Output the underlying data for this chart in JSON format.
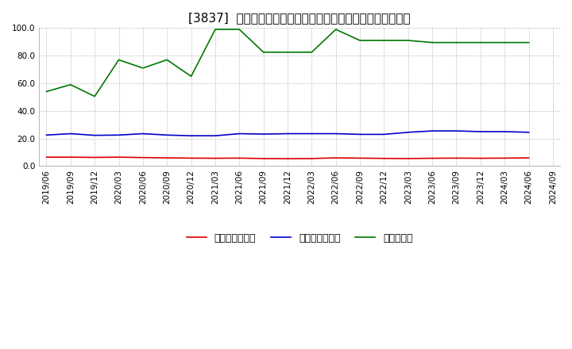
{
  "title": "[3837]  売上債権回転率、買入債務回転率、在庫回転率の推移",
  "x_labels": [
    "2019/06",
    "2019/09",
    "2019/12",
    "2020/03",
    "2020/06",
    "2020/09",
    "2020/12",
    "2021/03",
    "2021/06",
    "2021/09",
    "2021/12",
    "2022/03",
    "2022/06",
    "2022/09",
    "2022/12",
    "2023/03",
    "2023/06",
    "2023/09",
    "2023/12",
    "2024/03",
    "2024/06",
    "2024/09"
  ],
  "receivables_turnover": [
    6.5,
    6.5,
    6.3,
    6.5,
    6.2,
    6.0,
    5.8,
    5.7,
    5.8,
    5.5,
    5.4,
    5.5,
    6.0,
    5.8,
    5.6,
    5.5,
    5.7,
    5.8,
    5.7,
    5.8,
    6.0,
    null
  ],
  "payables_turnover": [
    22.5,
    23.5,
    22.3,
    22.5,
    23.5,
    22.5,
    22.0,
    22.0,
    23.5,
    23.2,
    23.5,
    23.5,
    23.5,
    23.0,
    23.0,
    24.5,
    25.5,
    25.5,
    25.0,
    25.0,
    24.5,
    null
  ],
  "inventory_turnover": [
    54.0,
    59.0,
    50.5,
    77.0,
    71.0,
    77.0,
    65.0,
    99.0,
    99.0,
    82.5,
    82.5,
    82.5,
    99.0,
    91.0,
    91.0,
    91.0,
    89.5,
    89.5,
    89.5,
    89.5,
    89.5,
    null
  ],
  "ylim": [
    0.0,
    100.0
  ],
  "yticks": [
    0.0,
    20.0,
    40.0,
    60.0,
    80.0,
    100.0
  ],
  "line_color_receivables": "#dd0000",
  "line_color_payables": "#0000cc",
  "line_color_inventory": "#007700",
  "legend_labels": [
    "売上債権回転率",
    "買入債務回転率",
    "在庫回転率"
  ],
  "bg_color": "#ffffff",
  "grid_color": "#aaaaaa",
  "title_fontsize": 11,
  "tick_fontsize": 7.5,
  "legend_fontsize": 9
}
